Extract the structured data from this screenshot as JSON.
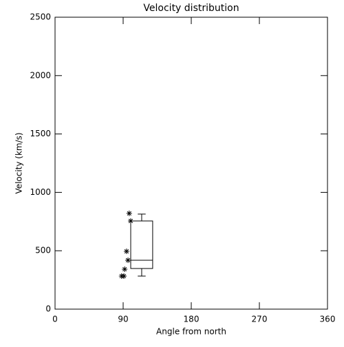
{
  "chart_data": {
    "type": "box",
    "title": "Velocity distribution",
    "xlabel": "Angle from north",
    "ylabel": "Velocity (km/s)",
    "xlim": [
      0,
      360
    ],
    "xticks": [
      0,
      90,
      180,
      270,
      360
    ],
    "ylim": [
      0,
      2500
    ],
    "yticks": [
      0,
      500,
      1000,
      1500,
      2000,
      2500
    ],
    "boxes": [
      {
        "x_left": 100,
        "x_right": 129,
        "whislo": 283,
        "q1": 348,
        "med": 419,
        "q3": 755,
        "whishi": 814
      }
    ],
    "points": {
      "x": [
        98,
        100,
        94.5,
        96.4,
        92,
        88,
        91
      ],
      "y": [
        820,
        755,
        495,
        419,
        342,
        283,
        283
      ]
    },
    "color": "#000000"
  }
}
